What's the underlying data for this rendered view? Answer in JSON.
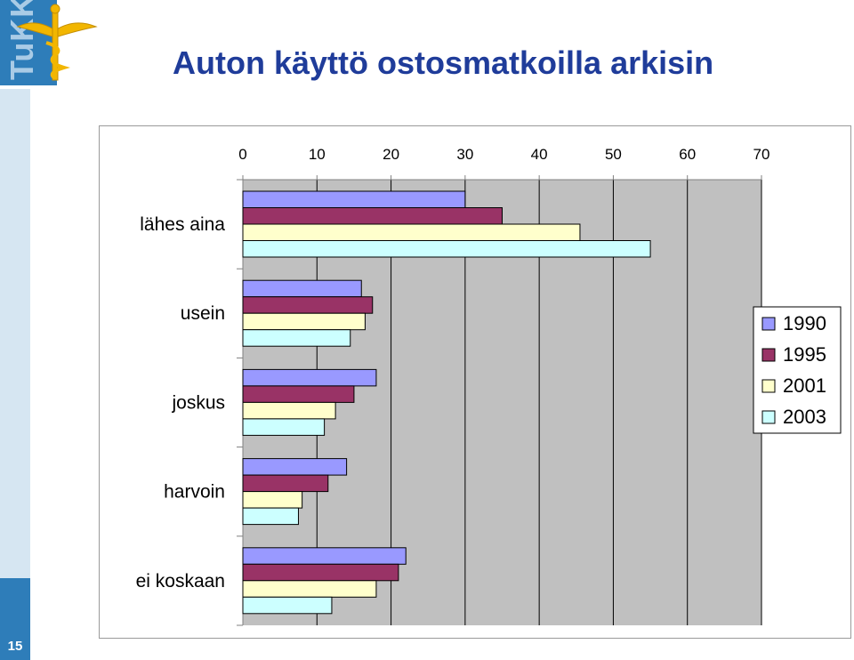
{
  "slide": {
    "title": "Auton käyttö ostosmatkoilla arkisin",
    "page_number": "15"
  },
  "logo": {
    "text": "TuKKK",
    "icon": "caduceus-icon"
  },
  "colors": {
    "title": "#1f3c9a",
    "plot_bg": "#c0c0c0",
    "strip": "#2e7db9",
    "strip_light": "#d6e6f2"
  },
  "chart_data": {
    "type": "bar",
    "orientation": "horizontal",
    "categories": [
      "lähes aina",
      "usein",
      "joskus",
      "harvoin",
      "ei koskaan"
    ],
    "series": [
      {
        "name": "1990",
        "color": "#9999ff",
        "values": [
          30,
          16,
          18,
          14,
          22
        ]
      },
      {
        "name": "1995",
        "color": "#993366",
        "values": [
          35,
          17.5,
          15,
          11.5,
          21
        ]
      },
      {
        "name": "2001",
        "color": "#ffffcc",
        "values": [
          45.5,
          16.5,
          12.5,
          8,
          18
        ]
      },
      {
        "name": "2003",
        "color": "#ccffff",
        "values": [
          55,
          14.5,
          11,
          7.5,
          12
        ]
      }
    ],
    "xlim": [
      0,
      70
    ],
    "xticks": [
      "0",
      "10",
      "20",
      "30",
      "40",
      "50",
      "60",
      "70"
    ],
    "x_axis_position": "top",
    "grid": true,
    "legend_position": "right"
  }
}
